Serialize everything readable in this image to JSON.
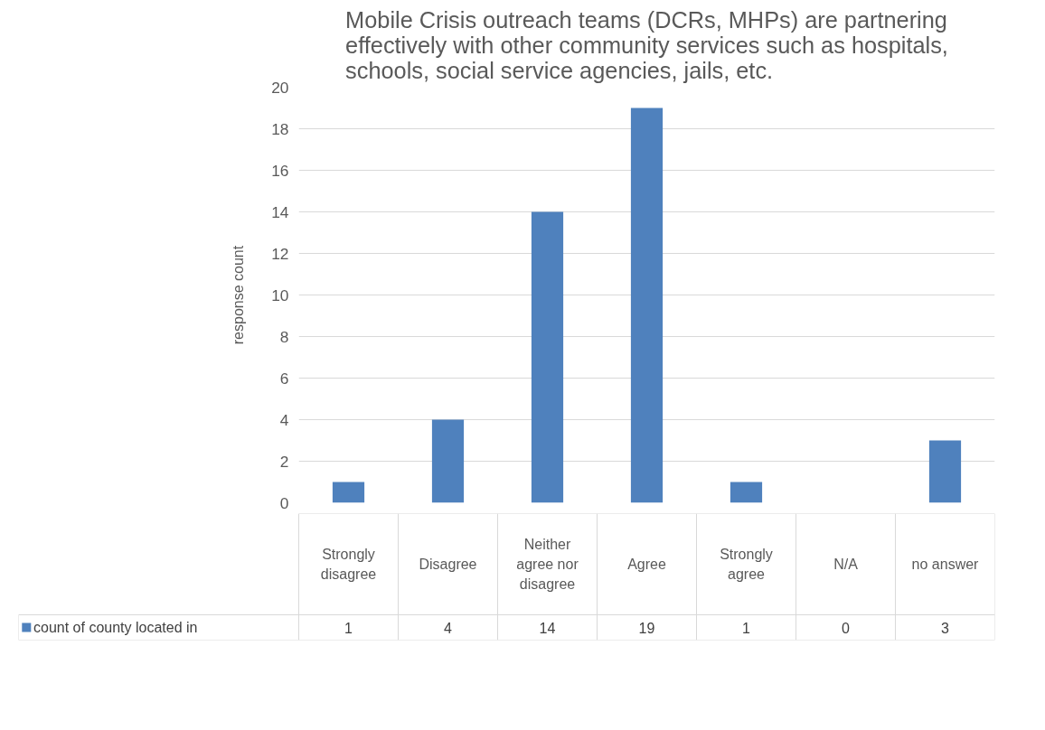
{
  "chart_data": {
    "type": "bar",
    "title": "Mobile Crisis outreach teams (DCRs, MHPs) are partnering effectively with other community services such as hospitals, schools, social service agencies, jails, etc.",
    "ylabel": "response count",
    "categories": [
      "Strongly disagree",
      "Disagree",
      "Neither agree nor disagree",
      "Agree",
      "Strongly agree",
      "N/A",
      "no answer"
    ],
    "series": [
      {
        "name": "count of county located in",
        "color": "#4f81bd",
        "values": [
          1,
          4,
          14,
          19,
          1,
          0,
          3
        ]
      }
    ],
    "ylim": [
      0,
      20
    ],
    "yticks": [
      0,
      2,
      4,
      6,
      8,
      10,
      12,
      14,
      16,
      18,
      20
    ],
    "grid": "y",
    "legend": "bottom",
    "data_labels": true
  }
}
